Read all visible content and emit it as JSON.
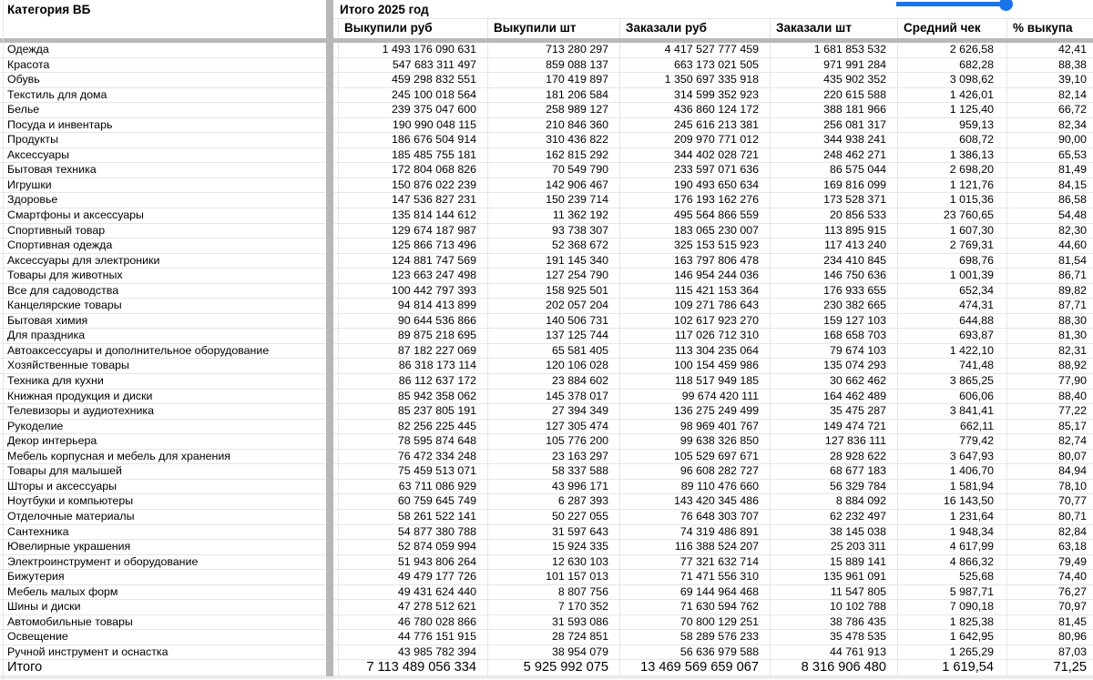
{
  "colors": {
    "accent": "#1a73e8",
    "gridline": "#e6e6e6",
    "pane_divider": "#b7b7b7"
  },
  "header": {
    "category_column": "Категория ВБ",
    "group_title": "Итого 2025 год",
    "columns": [
      "Выкупили руб",
      "Выкупили шт",
      "Заказали руб",
      "Заказали шт",
      "Средний чек",
      "% выкупа"
    ]
  },
  "table": {
    "rows": [
      {
        "category": "Одежда",
        "values": [
          "1 493 176 090 631",
          "713 280 297",
          "4 417 527 777 459",
          "1 681 853 532",
          "2 626,58",
          "42,41"
        ]
      },
      {
        "category": "Красота",
        "values": [
          "547 683 311 497",
          "859 088 137",
          "663 173 021 505",
          "971 991 284",
          "682,28",
          "88,38"
        ]
      },
      {
        "category": "Обувь",
        "values": [
          "459 298 832 551",
          "170 419 897",
          "1 350 697 335 918",
          "435 902 352",
          "3 098,62",
          "39,10"
        ]
      },
      {
        "category": "Текстиль для дома",
        "values": [
          "245 100 018 564",
          "181 206 584",
          "314 599 352 923",
          "220 615 588",
          "1 426,01",
          "82,14"
        ]
      },
      {
        "category": "Белье",
        "values": [
          "239 375 047 600",
          "258 989 127",
          "436 860 124 172",
          "388 181 966",
          "1 125,40",
          "66,72"
        ]
      },
      {
        "category": "Посуда и инвентарь",
        "values": [
          "190 990 048 115",
          "210 846 360",
          "245 616 213 381",
          "256 081 317",
          "959,13",
          "82,34"
        ]
      },
      {
        "category": "Продукты",
        "values": [
          "186 676 504 914",
          "310 436 822",
          "209 970 771 012",
          "344 938 241",
          "608,72",
          "90,00"
        ]
      },
      {
        "category": "Аксессуары",
        "values": [
          "185 485 755 181",
          "162 815 292",
          "344 402 028 721",
          "248 462 271",
          "1 386,13",
          "65,53"
        ]
      },
      {
        "category": "Бытовая техника",
        "values": [
          "172 804 068 826",
          "70 549 790",
          "233 597 071 636",
          "86 575 044",
          "2 698,20",
          "81,49"
        ]
      },
      {
        "category": "Игрушки",
        "values": [
          "150 876 022 239",
          "142 906 467",
          "190 493 650 634",
          "169 816 099",
          "1 121,76",
          "84,15"
        ]
      },
      {
        "category": "Здоровье",
        "values": [
          "147 536 827 231",
          "150 239 714",
          "176 193 162 276",
          "173 528 371",
          "1 015,36",
          "86,58"
        ]
      },
      {
        "category": "Смартфоны и аксессуары",
        "values": [
          "135 814 144 612",
          "11 362 192",
          "495 564 866 559",
          "20 856 533",
          "23 760,65",
          "54,48"
        ]
      },
      {
        "category": "Спортивный товар",
        "values": [
          "129 674 187 987",
          "93 738 307",
          "183 065 230 007",
          "113 895 915",
          "1 607,30",
          "82,30"
        ]
      },
      {
        "category": "Спортивная одежда",
        "values": [
          "125 866 713 496",
          "52 368 672",
          "325 153 515 923",
          "117 413 240",
          "2 769,31",
          "44,60"
        ]
      },
      {
        "category": "Аксессуары для электроники",
        "values": [
          "124 881 747 569",
          "191 145 340",
          "163 797 806 478",
          "234 410 845",
          "698,76",
          "81,54"
        ]
      },
      {
        "category": "Товары для животных",
        "values": [
          "123 663 247 498",
          "127 254 790",
          "146 954 244 036",
          "146 750 636",
          "1 001,39",
          "86,71"
        ]
      },
      {
        "category": "Все для садоводства",
        "values": [
          "100 442 797 393",
          "158 925 501",
          "115 421 153 364",
          "176 933 655",
          "652,34",
          "89,82"
        ]
      },
      {
        "category": "Канцелярские товары",
        "values": [
          "94 814 413 899",
          "202 057 204",
          "109 271 786 643",
          "230 382 665",
          "474,31",
          "87,71"
        ]
      },
      {
        "category": "Бытовая химия",
        "values": [
          "90 644 536 866",
          "140 506 731",
          "102 617 923 270",
          "159 127 103",
          "644,88",
          "88,30"
        ]
      },
      {
        "category": "Для праздника",
        "values": [
          "89 875 218 695",
          "137 125 744",
          "117 026 712 310",
          "168 658 703",
          "693,87",
          "81,30"
        ]
      },
      {
        "category": "Автоаксессуары и дополнительное оборудование",
        "values": [
          "87 182 227 069",
          "65 581 405",
          "113 304 235 064",
          "79 674 103",
          "1 422,10",
          "82,31"
        ]
      },
      {
        "category": "Хозяйственные товары",
        "values": [
          "86 318 173 114",
          "120 106 028",
          "100 154 459 986",
          "135 074 293",
          "741,48",
          "88,92"
        ]
      },
      {
        "category": "Техника для кухни",
        "values": [
          "86 112 637 172",
          "23 884 602",
          "118 517 949 185",
          "30 662 462",
          "3 865,25",
          "77,90"
        ]
      },
      {
        "category": "Книжная продукция и диски",
        "values": [
          "85 942 358 062",
          "145 378 017",
          "99 674 420 111",
          "164 462 489",
          "606,06",
          "88,40"
        ]
      },
      {
        "category": "Телевизоры и аудиотехника",
        "values": [
          "85 237 805 191",
          "27 394 349",
          "136 275 249 499",
          "35 475 287",
          "3 841,41",
          "77,22"
        ]
      },
      {
        "category": "Рукоделие",
        "values": [
          "82 256 225 445",
          "127 305 474",
          "98 969 401 767",
          "149 474 721",
          "662,11",
          "85,17"
        ]
      },
      {
        "category": "Декор интерьера",
        "values": [
          "78 595 874 648",
          "105 776 200",
          "99 638 326 850",
          "127 836 111",
          "779,42",
          "82,74"
        ]
      },
      {
        "category": "Мебель корпусная и мебель для хранения",
        "values": [
          "76 472 334 248",
          "23 163 297",
          "105 529 697 671",
          "28 928 622",
          "3 647,93",
          "80,07"
        ]
      },
      {
        "category": "Товары для малышей",
        "values": [
          "75 459 513 071",
          "58 337 588",
          "96 608 282 727",
          "68 677 183",
          "1 406,70",
          "84,94"
        ]
      },
      {
        "category": "Шторы и аксессуары",
        "values": [
          "63 711 086 929",
          "43 996 171",
          "89 110 476 660",
          "56 329 784",
          "1 581,94",
          "78,10"
        ]
      },
      {
        "category": "Ноутбуки и компьютеры",
        "values": [
          "60 759 645 749",
          "6 287 393",
          "143 420 345 486",
          "8 884 092",
          "16 143,50",
          "70,77"
        ]
      },
      {
        "category": "Отделочные материалы",
        "values": [
          "58 261 522 141",
          "50 227 055",
          "76 648 303 707",
          "62 232 497",
          "1 231,64",
          "80,71"
        ]
      },
      {
        "category": "Сантехника",
        "values": [
          "54 877 380 788",
          "31 597 643",
          "74 319 486 891",
          "38 145 038",
          "1 948,34",
          "82,84"
        ]
      },
      {
        "category": "Ювелирные украшения",
        "values": [
          "52 874 059 994",
          "15 924 335",
          "116 388 524 207",
          "25 203 311",
          "4 617,99",
          "63,18"
        ]
      },
      {
        "category": "Электроинструмент и оборудование",
        "values": [
          "51 943 806 264",
          "12 630 103",
          "77 321 632 714",
          "15 889 141",
          "4 866,32",
          "79,49"
        ]
      },
      {
        "category": "Бижутерия",
        "values": [
          "49 479 177 726",
          "101 157 013",
          "71 471 556 310",
          "135 961 091",
          "525,68",
          "74,40"
        ]
      },
      {
        "category": "Мебель малых форм",
        "values": [
          "49 431 624 440",
          "8 807 756",
          "69 144 964 468",
          "11 547 805",
          "5 987,71",
          "76,27"
        ]
      },
      {
        "category": "Шины и диски",
        "values": [
          "47 278 512 621",
          "7 170 352",
          "71 630 594 762",
          "10 102 788",
          "7 090,18",
          "70,97"
        ]
      },
      {
        "category": "Автомобильные товары",
        "values": [
          "46 780 028 866",
          "31 593 086",
          "70 800 129 251",
          "38 786 435",
          "1 825,38",
          "81,45"
        ]
      },
      {
        "category": "Освещение",
        "values": [
          "44 776 151 915",
          "28 724 851",
          "58 289 576 233",
          "35 478 535",
          "1 642,95",
          "80,96"
        ]
      },
      {
        "category": "Ручной инструмент и оснастка",
        "values": [
          "43 985 782 394",
          "38 954 079",
          "56 636 979 588",
          "44 761 913",
          "1 265,29",
          "87,03"
        ]
      }
    ],
    "total": {
      "category": "Итого",
      "values": [
        "7 113 489 056 334",
        "5 925 992 075",
        "13 469 569 659 067",
        "8 316 906 480",
        "1 619,54",
        "71,25"
      ]
    }
  }
}
